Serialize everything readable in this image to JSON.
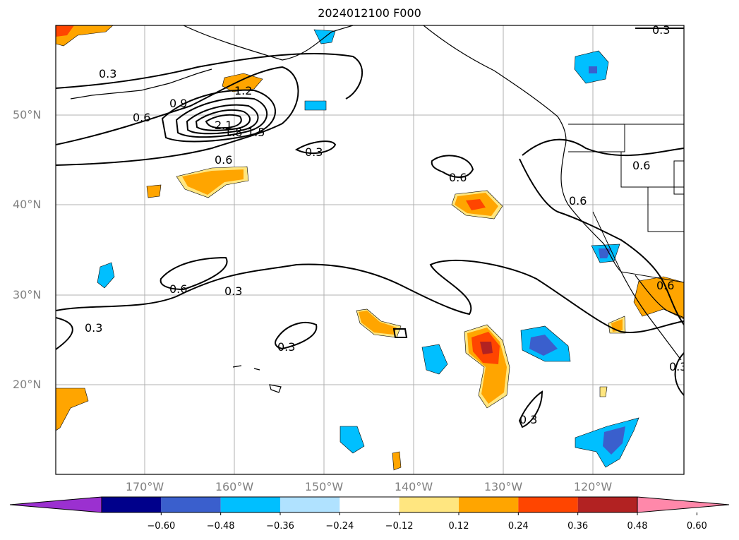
{
  "title": "2024012100 F000",
  "lat_labels": [
    "50°N",
    "40°N",
    "30°N",
    "20°N"
  ],
  "lon_labels": [
    "170°W",
    "160°W",
    "150°W",
    "140°W",
    "130°W",
    "120°W"
  ],
  "colorbar": {
    "ticks": [
      "−0.60",
      "−0.48",
      "−0.36",
      "−0.24",
      "−0.12",
      "0.12",
      "0.24",
      "0.36",
      "0.48",
      "0.60"
    ],
    "colors": [
      "#9b30d0",
      "#00008b",
      "#3a5fcd",
      "#00bfff",
      "#b0e2ff",
      "#ffffff",
      "#ffe680",
      "#ffa500",
      "#ff4500",
      "#b22222",
      "#ff88aa"
    ]
  },
  "contour_labels": [
    "0.3",
    "0.6",
    "0.9",
    "1.2",
    "1.5",
    "1.8",
    "2.1",
    "0.3",
    "0.6",
    "0.3",
    "0.6",
    "0.6",
    "0.6",
    "0.3",
    "0.3",
    "0.3",
    "0.3",
    "0.6",
    "0.3",
    "0.6"
  ]
}
